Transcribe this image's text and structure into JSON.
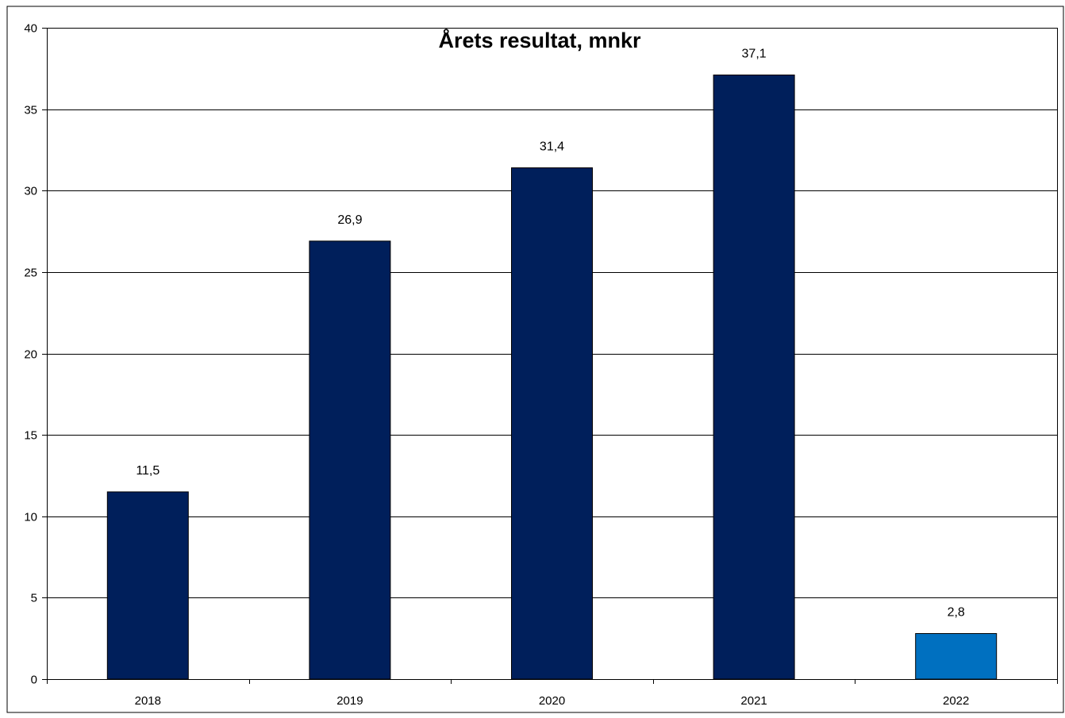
{
  "chart_data": {
    "type": "bar",
    "title": "Årets resultat, mnkr",
    "xlabel": "",
    "ylabel": "",
    "categories": [
      "2018",
      "2019",
      "2020",
      "2021",
      "2022"
    ],
    "values": [
      11.5,
      26.9,
      31.4,
      37.1,
      2.8
    ],
    "value_labels": [
      "11,5",
      "26,9",
      "31,4",
      "37,1",
      "2,8"
    ],
    "ylim": [
      0,
      40
    ],
    "yticks": [
      0,
      5,
      10,
      15,
      20,
      25,
      30,
      35,
      40
    ],
    "grid": true,
    "legend": "none",
    "colors": {
      "bar": "#001f5b",
      "highlight_bar": "#0070c0",
      "highlight_index": 4,
      "gridline": "#000000",
      "axis": "#000000"
    }
  }
}
